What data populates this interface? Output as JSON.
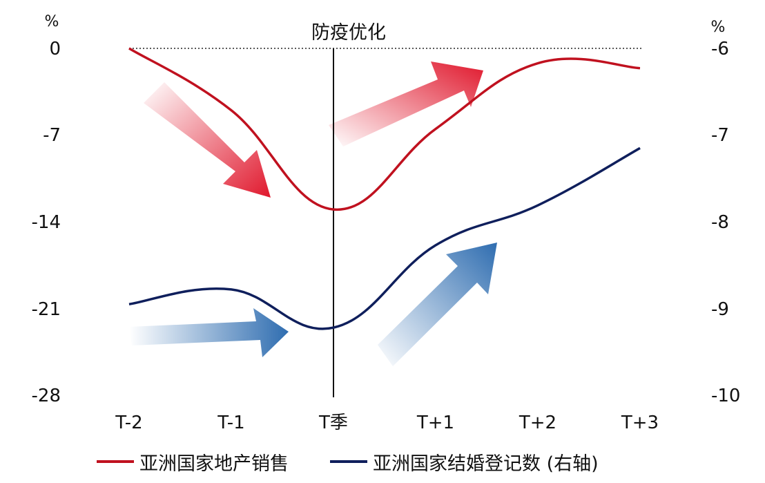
{
  "chart_data": {
    "type": "line",
    "title": "",
    "categories": [
      "T-2",
      "T-1",
      "T季",
      "T+1",
      "T+2",
      "T+3"
    ],
    "left_axis": {
      "unit": "%",
      "ylim": [
        -28,
        0
      ],
      "ticks": [
        "0",
        "-7",
        "-14",
        "-21",
        "-28"
      ]
    },
    "right_axis": {
      "unit": "%",
      "ylim": [
        -10,
        -6
      ],
      "ticks": [
        "-6",
        "-7",
        "-8",
        "-9",
        "-10"
      ]
    },
    "annotation": {
      "label": "防疫优化",
      "at_category": "T季"
    },
    "reference_line_value": 0,
    "series": [
      {
        "name": "亚洲国家地产销售",
        "axis": "left",
        "color": "#c0111f",
        "values": [
          0,
          -5,
          -13,
          -6.5,
          -1.2,
          -1.6
        ]
      },
      {
        "name": "亚洲国家结婚登记数 (右轴)",
        "axis": "right",
        "color": "#0f1f5c",
        "values": [
          -8.95,
          -8.78,
          -9.22,
          -8.27,
          -7.81,
          -7.15
        ]
      }
    ],
    "arrows": [
      {
        "color": "#e0182d",
        "direction": "down"
      },
      {
        "color": "#e0182d",
        "direction": "up"
      },
      {
        "color": "#2f6db0",
        "direction": "right"
      },
      {
        "color": "#2f6db0",
        "direction": "up"
      }
    ],
    "grid": false,
    "legend_position": "bottom"
  }
}
